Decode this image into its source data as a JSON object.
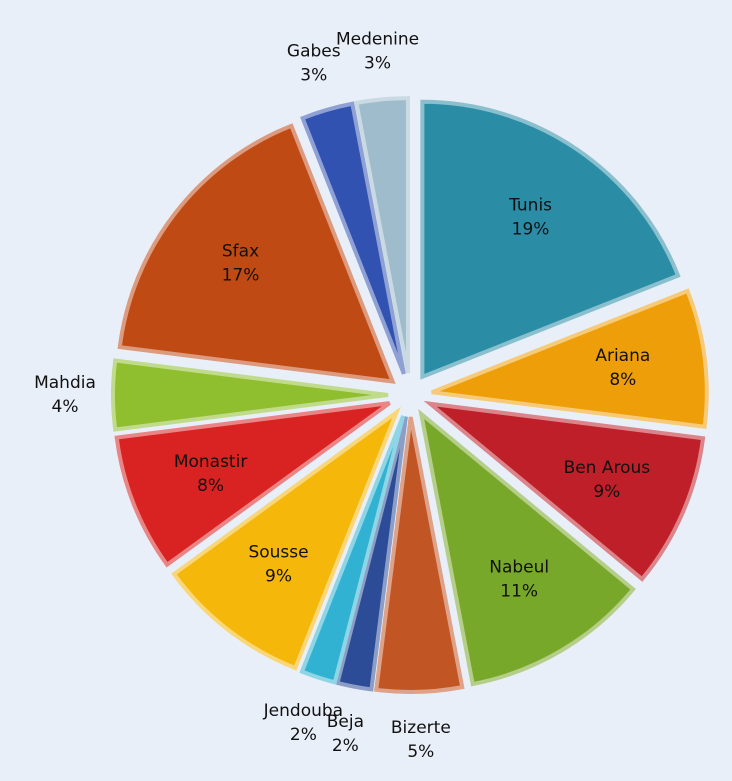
{
  "chart_data": {
    "type": "pie",
    "categories": [
      "Tunis",
      "Ariana",
      "Ben Arous",
      "Nabeul",
      "Bizerte",
      "Beja",
      "Jendouba",
      "Sousse",
      "Monastir",
      "Mahdia",
      "Sfax",
      "Gabes",
      "Medenine"
    ],
    "values": [
      19,
      8,
      9,
      11,
      5,
      2,
      2,
      9,
      8,
      4,
      17,
      3,
      3
    ],
    "value_labels": [
      "19%",
      "8%",
      "9%",
      "11%",
      "5%",
      "2%",
      "2%",
      "9%",
      "8%",
      "4%",
      "17%",
      "3%",
      "3%"
    ],
    "colors": [
      "#2b8ca6",
      "#ee9e08",
      "#be1f28",
      "#78a82a",
      "#c25524",
      "#2d4c98",
      "#32b2d2",
      "#f4b70a",
      "#d92222",
      "#8fbe2e",
      "#c04a14",
      "#3152b0",
      "#9fbccc"
    ]
  }
}
